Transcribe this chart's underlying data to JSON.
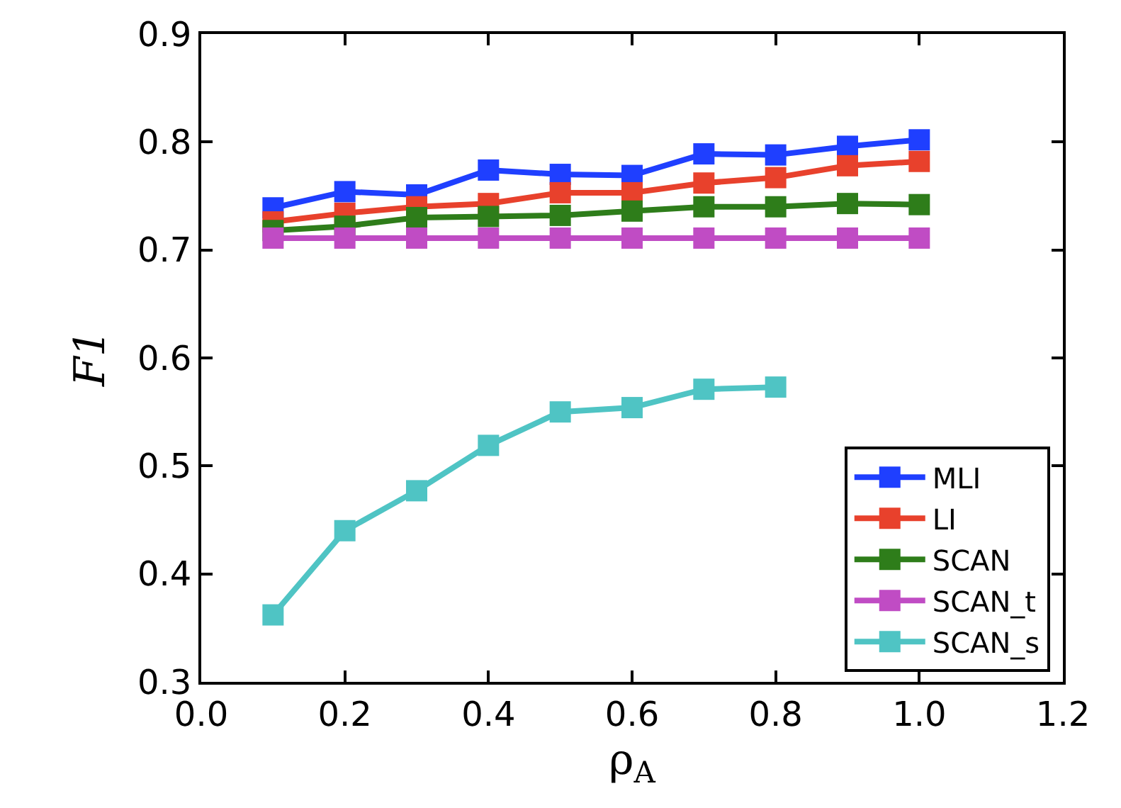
{
  "chart_data": {
    "type": "line",
    "xlabel": "ρ$_{A}$",
    "ylabel": "F1",
    "x": [
      0.1,
      0.2,
      0.3,
      0.4,
      0.5,
      0.6,
      0.7,
      0.8,
      0.9,
      1.0
    ],
    "series": [
      {
        "name": "MLI",
        "color": "#1f3fff",
        "values": [
          0.739,
          0.754,
          0.751,
          0.774,
          0.77,
          0.769,
          0.789,
          0.788,
          0.796,
          0.802
        ]
      },
      {
        "name": "LI",
        "color": "#e8412c",
        "values": [
          0.726,
          0.734,
          0.74,
          0.743,
          0.753,
          0.753,
          0.762,
          0.767,
          0.778,
          0.782
        ]
      },
      {
        "name": "SCAN",
        "color": "#2e7d1a",
        "values": [
          0.718,
          0.722,
          0.73,
          0.731,
          0.732,
          0.736,
          0.74,
          0.74,
          0.743,
          0.742
        ]
      },
      {
        "name": "SCAN_t",
        "color": "#c04cc4",
        "values": [
          0.711,
          0.711,
          0.711,
          0.711,
          0.711,
          0.711,
          0.711,
          0.711,
          0.711,
          0.711
        ]
      },
      {
        "name": "SCAN_s",
        "color": "#4fc4c4",
        "values": [
          0.362,
          0.44,
          0.477,
          0.519,
          0.55,
          0.554,
          0.571,
          0.573,
          null,
          null
        ]
      }
    ],
    "xlim": [
      0.0,
      1.2
    ],
    "xticks": [
      {
        "value": 0,
        "label": "0.0"
      },
      0.2,
      0.4,
      0.6,
      0.8,
      {
        "value": 1,
        "label": "1.0"
      },
      1.2
    ],
    "ylim": [
      0.3,
      0.9
    ],
    "yticks": [
      0.3,
      0.4,
      0.5,
      0.6,
      0.7,
      0.8,
      0.9
    ],
    "grid": false,
    "legend": "bottom right",
    "marker": "square",
    "line_style": "solid"
  }
}
